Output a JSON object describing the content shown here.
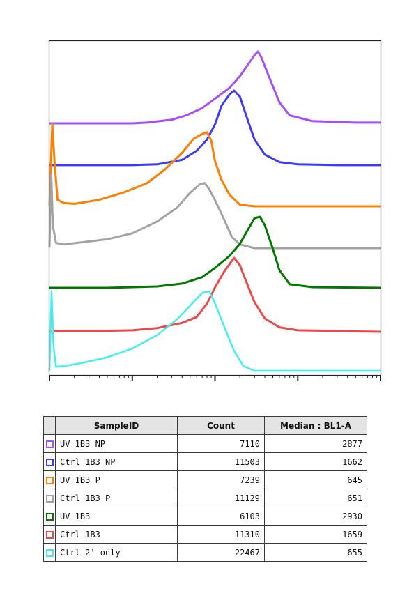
{
  "chart_data": {
    "type": "line",
    "title": "",
    "xlabel": "",
    "ylabel": "",
    "x_scale": "log",
    "style": "staggered overlay histograms",
    "x_axis_tick_labels": [],
    "series": [
      {
        "name": "UV 1B3 NP",
        "color": "#a64dff",
        "count": 7110,
        "median": 2877,
        "x": [
          10,
          40,
          100,
          150,
          300,
          450,
          700,
          1000,
          1500,
          2000,
          2500,
          3000,
          3300,
          3600,
          4500,
          6000,
          8000,
          15000,
          50000,
          100000
        ],
        "y": [
          0.01,
          0.01,
          0.01,
          0.02,
          0.06,
          0.12,
          0.22,
          0.35,
          0.5,
          0.66,
          0.82,
          0.95,
          1.0,
          0.93,
          0.65,
          0.3,
          0.12,
          0.04,
          0.02,
          0.02
        ]
      },
      {
        "name": "Ctrl 1B3 NP",
        "color": "#3b3bff",
        "count": 11503,
        "median": 1662,
        "x": [
          10,
          40,
          100,
          200,
          400,
          600,
          800,
          1000,
          1200,
          1500,
          1700,
          2000,
          2500,
          3000,
          4000,
          6000,
          10000,
          30000,
          100000
        ],
        "y": [
          0.01,
          0.01,
          0.01,
          0.02,
          0.08,
          0.2,
          0.35,
          0.55,
          0.8,
          0.95,
          1.0,
          0.92,
          0.6,
          0.35,
          0.15,
          0.05,
          0.02,
          0.01,
          0.01
        ]
      },
      {
        "name": "UV 1B3 P",
        "color": "#ff7f00",
        "count": 7239,
        "median": 645,
        "x": [
          10,
          10.8,
          11.5,
          12.5,
          15,
          20,
          40,
          80,
          150,
          250,
          400,
          550,
          700,
          800,
          900,
          1000,
          1200,
          1500,
          2000,
          3000,
          10000,
          100000
        ],
        "y": [
          0.01,
          1.0,
          0.55,
          0.08,
          0.04,
          0.03,
          0.08,
          0.17,
          0.28,
          0.45,
          0.65,
          0.82,
          0.88,
          0.9,
          0.8,
          0.55,
          0.32,
          0.14,
          0.02,
          0.0,
          0.0,
          0.0
        ]
      },
      {
        "name": "Ctrl 1B3 P",
        "color": "#a3a3a3",
        "count": 11129,
        "median": 651,
        "x": [
          10,
          10.5,
          11,
          12,
          15,
          25,
          50,
          100,
          200,
          350,
          500,
          650,
          750,
          850,
          1000,
          1300,
          1600,
          2000,
          3000,
          10000,
          100000
        ],
        "y": [
          0.01,
          1.0,
          0.3,
          0.07,
          0.05,
          0.08,
          0.12,
          0.2,
          0.36,
          0.55,
          0.75,
          0.86,
          0.88,
          0.8,
          0.65,
          0.38,
          0.15,
          0.05,
          0.0,
          0.0,
          0.0
        ]
      },
      {
        "name": "UV 1B3",
        "color": "#007800",
        "count": 6103,
        "median": 2930,
        "x": [
          10,
          50,
          200,
          400,
          700,
          1000,
          1500,
          2000,
          2500,
          3000,
          3500,
          4000,
          5000,
          6000,
          8000,
          15000,
          100000
        ],
        "y": [
          0.0,
          0.0,
          0.02,
          0.06,
          0.15,
          0.28,
          0.45,
          0.62,
          0.82,
          0.98,
          1.0,
          0.88,
          0.55,
          0.25,
          0.05,
          0.01,
          0.0
        ]
      },
      {
        "name": "Ctrl 1B3",
        "color": "#f04848",
        "count": 11310,
        "median": 1659,
        "x": [
          10,
          40,
          100,
          200,
          400,
          600,
          800,
          1000,
          1300,
          1700,
          2000,
          2500,
          3000,
          4000,
          6000,
          10000,
          30000,
          100000
        ],
        "y": [
          0.01,
          0.01,
          0.02,
          0.05,
          0.12,
          0.2,
          0.38,
          0.6,
          0.82,
          1.0,
          0.9,
          0.62,
          0.4,
          0.18,
          0.06,
          0.02,
          0.01,
          0.0
        ]
      },
      {
        "name": "Ctrl 2' only",
        "color": "#40f0f0",
        "count": 22467,
        "median": 655,
        "x": [
          10,
          10.6,
          11.2,
          12,
          15,
          25,
          50,
          100,
          200,
          350,
          500,
          700,
          850,
          1000,
          1300,
          1700,
          2200,
          3000,
          100000
        ],
        "y": [
          0.0,
          1.0,
          0.3,
          0.05,
          0.06,
          0.1,
          0.17,
          0.28,
          0.45,
          0.65,
          0.82,
          0.98,
          1.0,
          0.85,
          0.55,
          0.25,
          0.06,
          0.0,
          0.0
        ]
      }
    ]
  },
  "table": {
    "headers": {
      "sample_id": "SampleID",
      "count": "Count",
      "median": "Median : BL1-A"
    },
    "rows": [
      {
        "sample_id": "UV 1B3 NP",
        "count": "7110",
        "median": "2877",
        "color": "#a64dff"
      },
      {
        "sample_id": "Ctrl 1B3 NP",
        "count": "11503",
        "median": "1662",
        "color": "#3b3bff"
      },
      {
        "sample_id": "UV 1B3 P",
        "count": "7239",
        "median": "645",
        "color": "#ff7f00"
      },
      {
        "sample_id": "Ctrl 1B3 P",
        "count": "11129",
        "median": "651",
        "color": "#a3a3a3"
      },
      {
        "sample_id": "UV 1B3",
        "count": "6103",
        "median": "2930",
        "color": "#007800"
      },
      {
        "sample_id": "Ctrl 1B3",
        "count": "11310",
        "median": "1659",
        "color": "#f04848"
      },
      {
        "sample_id": "Ctrl 2' only",
        "count": "22467",
        "median": "655",
        "color": "#40f0f0"
      }
    ]
  }
}
